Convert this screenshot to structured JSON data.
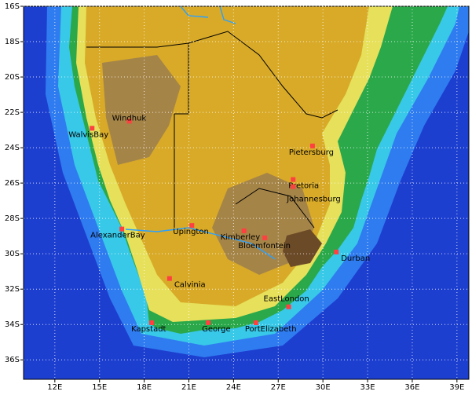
{
  "chart_data": {
    "type": "map",
    "xlim": [
      9.9,
      39.8
    ],
    "ylim": [
      -16,
      -37.1
    ],
    "xticks": [
      {
        "value": 12,
        "label": "12E"
      },
      {
        "value": 15,
        "label": "15E"
      },
      {
        "value": 18,
        "label": "18E"
      },
      {
        "value": 21,
        "label": "21E"
      },
      {
        "value": 24,
        "label": "24E"
      },
      {
        "value": 27,
        "label": "27E"
      },
      {
        "value": 30,
        "label": "30E"
      },
      {
        "value": 33,
        "label": "33E"
      },
      {
        "value": 36,
        "label": "36E"
      },
      {
        "value": 39,
        "label": "39E"
      }
    ],
    "yticks": [
      {
        "value": -16,
        "label": "16S"
      },
      {
        "value": -18,
        "label": "18S"
      },
      {
        "value": -20,
        "label": "20S"
      },
      {
        "value": -22,
        "label": "22S"
      },
      {
        "value": -24,
        "label": "24S"
      },
      {
        "value": -26,
        "label": "26S"
      },
      {
        "value": -28,
        "label": "28S"
      },
      {
        "value": -30,
        "label": "30S"
      },
      {
        "value": -32,
        "label": "32S"
      },
      {
        "value": -34,
        "label": "34S"
      },
      {
        "value": -36,
        "label": "36S"
      }
    ],
    "grid": true,
    "marker_color": "#ff4040",
    "cities": [
      {
        "name": "WalvisBay",
        "lon": 14.5,
        "lat": -22.9
      },
      {
        "name": "Windhuk",
        "lon": 17.0,
        "lat": -22.5
      },
      {
        "name": "Pietersburg",
        "lon": 29.3,
        "lat": -23.9
      },
      {
        "name": "Pretoria",
        "lon": 28.0,
        "lat": -25.8
      },
      {
        "name": "Johannesburg",
        "lon": 28.0,
        "lat": -26.2
      },
      {
        "name": "AlexanderBay",
        "lon": 16.5,
        "lat": -28.6
      },
      {
        "name": "Upington",
        "lon": 21.2,
        "lat": -28.4
      },
      {
        "name": "Kimberley",
        "lon": 24.7,
        "lat": -28.7
      },
      {
        "name": "Bloemfontein",
        "lon": 26.1,
        "lat": -29.1
      },
      {
        "name": "Durban",
        "lon": 30.9,
        "lat": -29.9
      },
      {
        "name": "Calvinia",
        "lon": 19.7,
        "lat": -31.4
      },
      {
        "name": "EastLondon",
        "lon": 27.7,
        "lat": -33.0
      },
      {
        "name": "Kapstadt",
        "lon": 18.5,
        "lat": -33.9
      },
      {
        "name": "George",
        "lon": 22.3,
        "lat": -33.9
      },
      {
        "name": "PortElizabeth",
        "lon": 25.5,
        "lat": -33.9
      }
    ]
  }
}
